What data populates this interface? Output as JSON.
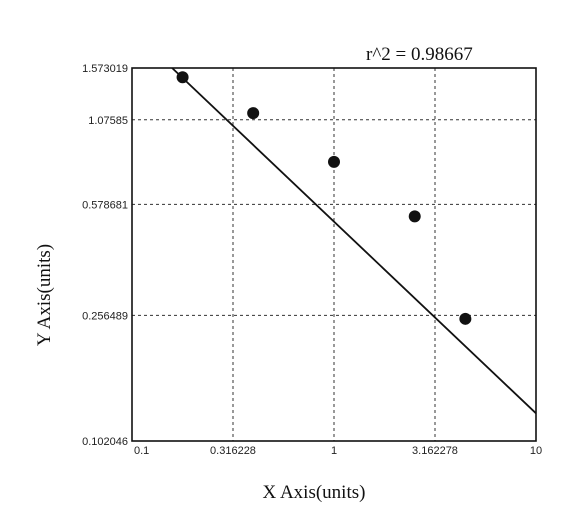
{
  "chart_data": {
    "type": "scatter",
    "annotation": "r^2  = 0.98667",
    "xlabel": "X Axis(units)",
    "ylabel": "Y Axis(units)",
    "x_scale": "log",
    "y_scale": "log",
    "xlim": [
      0.1,
      10
    ],
    "ylim": [
      0.102046,
      1.573019
    ],
    "x_ticks": [
      0.1,
      0.316228,
      1,
      3.162278,
      10
    ],
    "x_tick_labels": [
      "0.1",
      "0.316228",
      "1",
      "3.162278",
      "10"
    ],
    "y_ticks": [
      0.102046,
      0.256489,
      0.578681,
      1.07585,
      1.573019
    ],
    "y_tick_labels": [
      "0.102046",
      "0.256489",
      "0.578681",
      "1.07585",
      "1.573019"
    ],
    "grid": true,
    "series": [
      {
        "points": [
          {
            "x": 0.178,
            "y": 1.47
          },
          {
            "x": 0.398,
            "y": 1.13
          },
          {
            "x": 1.0,
            "y": 0.79
          },
          {
            "x": 2.51,
            "y": 0.53
          },
          {
            "x": 4.47,
            "y": 0.25
          }
        ]
      }
    ],
    "fit_line": [
      {
        "x": 0.158,
        "y": 1.573019
      },
      {
        "x": 10,
        "y": 0.125
      }
    ]
  }
}
